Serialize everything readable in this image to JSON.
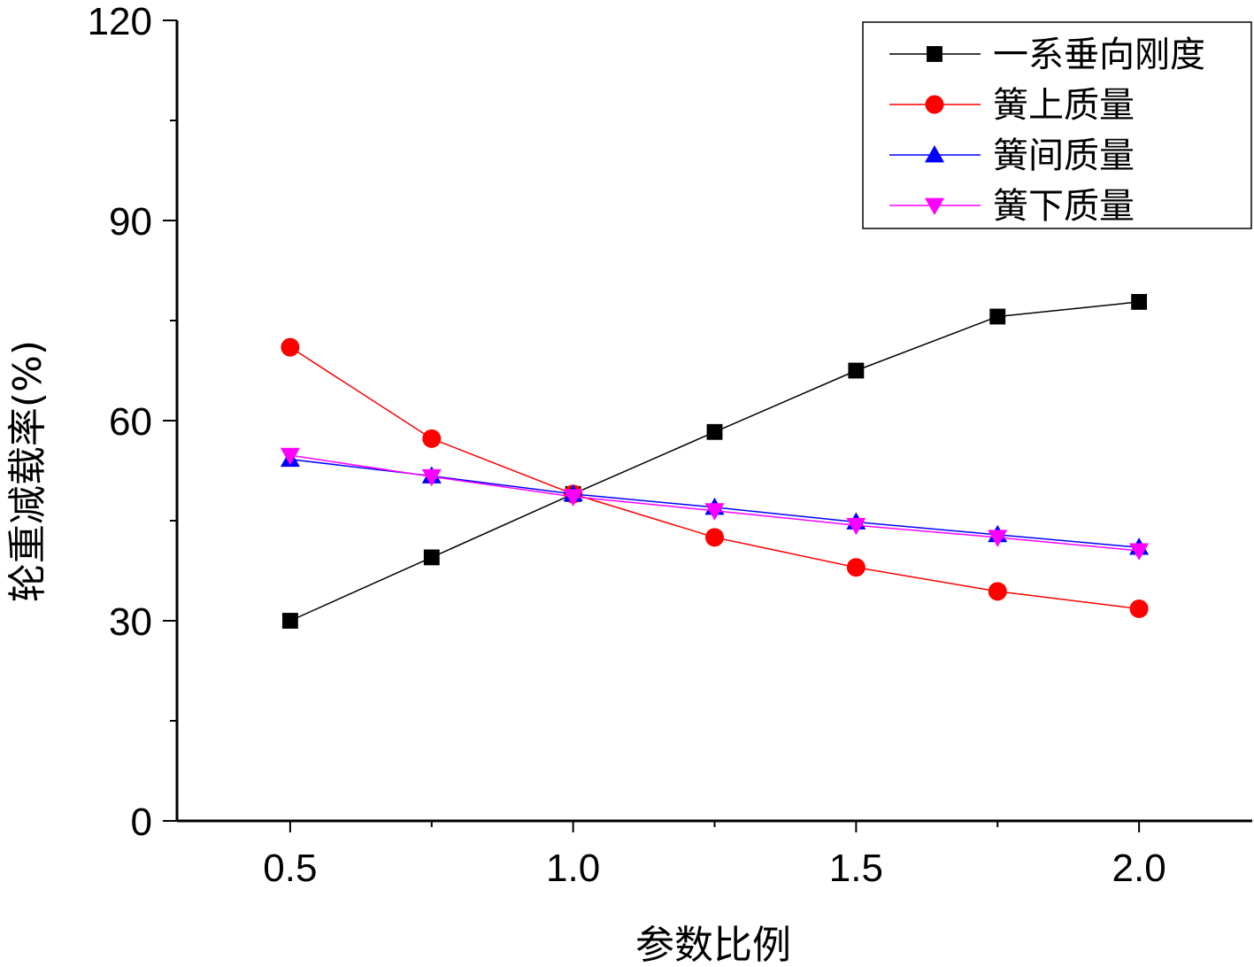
{
  "chart_data": {
    "type": "line",
    "title": "",
    "xlabel": "参数比例",
    "ylabel": "轮重减载率(%)",
    "xlim": [
      0.3,
      2.2
    ],
    "ylim": [
      0,
      120
    ],
    "xticks": [
      0.5,
      1.0,
      1.5,
      2.0
    ],
    "xtick_labels": [
      "0.5",
      "1.0",
      "1.5",
      "2.0"
    ],
    "yticks": [
      0,
      30,
      60,
      90,
      120
    ],
    "ytick_labels": [
      "0",
      "30",
      "60",
      "90",
      "120"
    ],
    "grid": false,
    "legend_position": "top-right",
    "x": [
      0.5,
      0.75,
      1.0,
      1.25,
      1.5,
      1.75,
      2.0
    ],
    "series": [
      {
        "name": "一系垂向刚度",
        "color": "#000000",
        "marker": "square",
        "values": [
          30.0,
          39.5,
          49.0,
          58.3,
          67.5,
          75.6,
          77.8
        ]
      },
      {
        "name": "簧上质量",
        "color": "#ff0000",
        "marker": "circle",
        "values": [
          71.0,
          57.3,
          49.0,
          42.5,
          38.0,
          34.4,
          31.8
        ]
      },
      {
        "name": "簧间质量",
        "color": "#0000ff",
        "marker": "triangle-up",
        "values": [
          54.2,
          51.7,
          49.0,
          47.0,
          44.8,
          42.9,
          41.0
        ]
      },
      {
        "name": "簧下质量",
        "color": "#ff00ff",
        "marker": "triangle-down",
        "values": [
          54.8,
          51.6,
          48.6,
          46.5,
          44.3,
          42.5,
          40.5
        ]
      }
    ]
  }
}
